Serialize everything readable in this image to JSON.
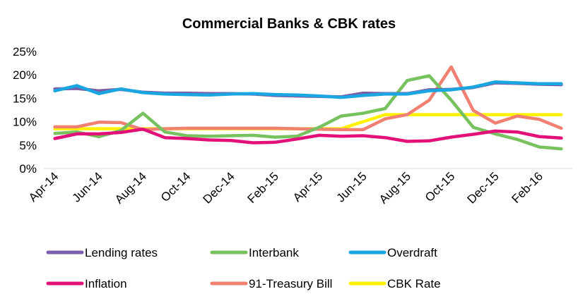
{
  "chart_data": {
    "type": "line",
    "title": "Commercial Banks & CBK rates",
    "xlabel": "",
    "ylabel": "",
    "ylim": [
      0,
      25
    ],
    "y_ticks": [
      "0%",
      "5%",
      "10%",
      "15%",
      "20%",
      "25%"
    ],
    "y_tick_values": [
      0,
      5,
      10,
      15,
      20,
      25
    ],
    "grid": false,
    "legend_position": "bottom",
    "x": [
      "Apr-14",
      "May-14",
      "Jun-14",
      "Jul-14",
      "Aug-14",
      "Sep-14",
      "Oct-14",
      "Nov-14",
      "Dec-14",
      "Jan-15",
      "Feb-15",
      "Mar-15",
      "Apr-15",
      "May-15",
      "Jun-15",
      "Jul-15",
      "Aug-15",
      "Sep-15",
      "Oct-15",
      "Nov-15",
      "Dec-15",
      "Jan-16",
      "Feb-16",
      "Mar-16"
    ],
    "x_tick_labels": [
      "Apr-14",
      "Jun-14",
      "Aug-14",
      "Oct-14",
      "Dec-14",
      "Feb-15",
      "Apr-15",
      "Jun-15",
      "Aug-15",
      "Oct-15",
      "Dec-15",
      "Feb-16"
    ],
    "series": [
      {
        "name": "Lending rates",
        "color": "#7B5EA7",
        "values": [
          17.0,
          17.1,
          16.6,
          16.9,
          16.3,
          16.1,
          16.1,
          16.0,
          16.0,
          15.9,
          15.6,
          15.5,
          15.4,
          15.3,
          16.1,
          16.0,
          16.0,
          16.8,
          16.9,
          17.3,
          18.3,
          18.2,
          18.0,
          17.9
        ]
      },
      {
        "name": "Interbank",
        "color": "#77C15F",
        "values": [
          7.5,
          7.8,
          6.8,
          8.1,
          11.8,
          7.8,
          7.0,
          6.9,
          7.0,
          7.1,
          6.7,
          6.9,
          8.8,
          11.2,
          11.8,
          12.8,
          18.8,
          19.8,
          14.6,
          8.8,
          7.4,
          6.2,
          4.6,
          4.2
        ]
      },
      {
        "name": "Overdraft",
        "color": "#1AA6E1",
        "values": [
          16.6,
          17.7,
          16.0,
          17.0,
          16.2,
          15.9,
          15.8,
          15.7,
          15.9,
          16.0,
          15.8,
          15.7,
          15.5,
          15.2,
          15.6,
          15.9,
          15.9,
          16.6,
          16.8,
          17.4,
          18.5,
          18.3,
          18.1,
          18.1
        ]
      },
      {
        "name": "Inflation",
        "color": "#E4107A",
        "values": [
          6.4,
          7.4,
          7.4,
          7.7,
          8.4,
          6.6,
          6.4,
          6.1,
          6.0,
          5.5,
          5.6,
          6.3,
          7.1,
          6.9,
          7.0,
          6.6,
          5.8,
          5.9,
          6.7,
          7.3,
          8.0,
          7.8,
          6.8,
          6.5
        ]
      },
      {
        "name": "91-Treasury Bill",
        "color": "#F08072",
        "values": [
          8.9,
          8.9,
          9.9,
          9.8,
          8.3,
          8.5,
          8.6,
          8.6,
          8.6,
          8.6,
          8.6,
          8.5,
          8.4,
          8.3,
          8.3,
          10.6,
          11.5,
          14.6,
          21.7,
          12.4,
          9.7,
          11.2,
          10.5,
          8.6
        ]
      },
      {
        "name": "CBK Rate",
        "color": "#FFF200",
        "values": [
          8.5,
          8.5,
          8.5,
          8.5,
          8.5,
          8.5,
          8.5,
          8.5,
          8.5,
          8.5,
          8.5,
          8.5,
          8.5,
          8.5,
          10.0,
          11.5,
          11.5,
          11.5,
          11.5,
          11.5,
          11.5,
          11.5,
          11.5,
          11.5
        ]
      }
    ]
  }
}
